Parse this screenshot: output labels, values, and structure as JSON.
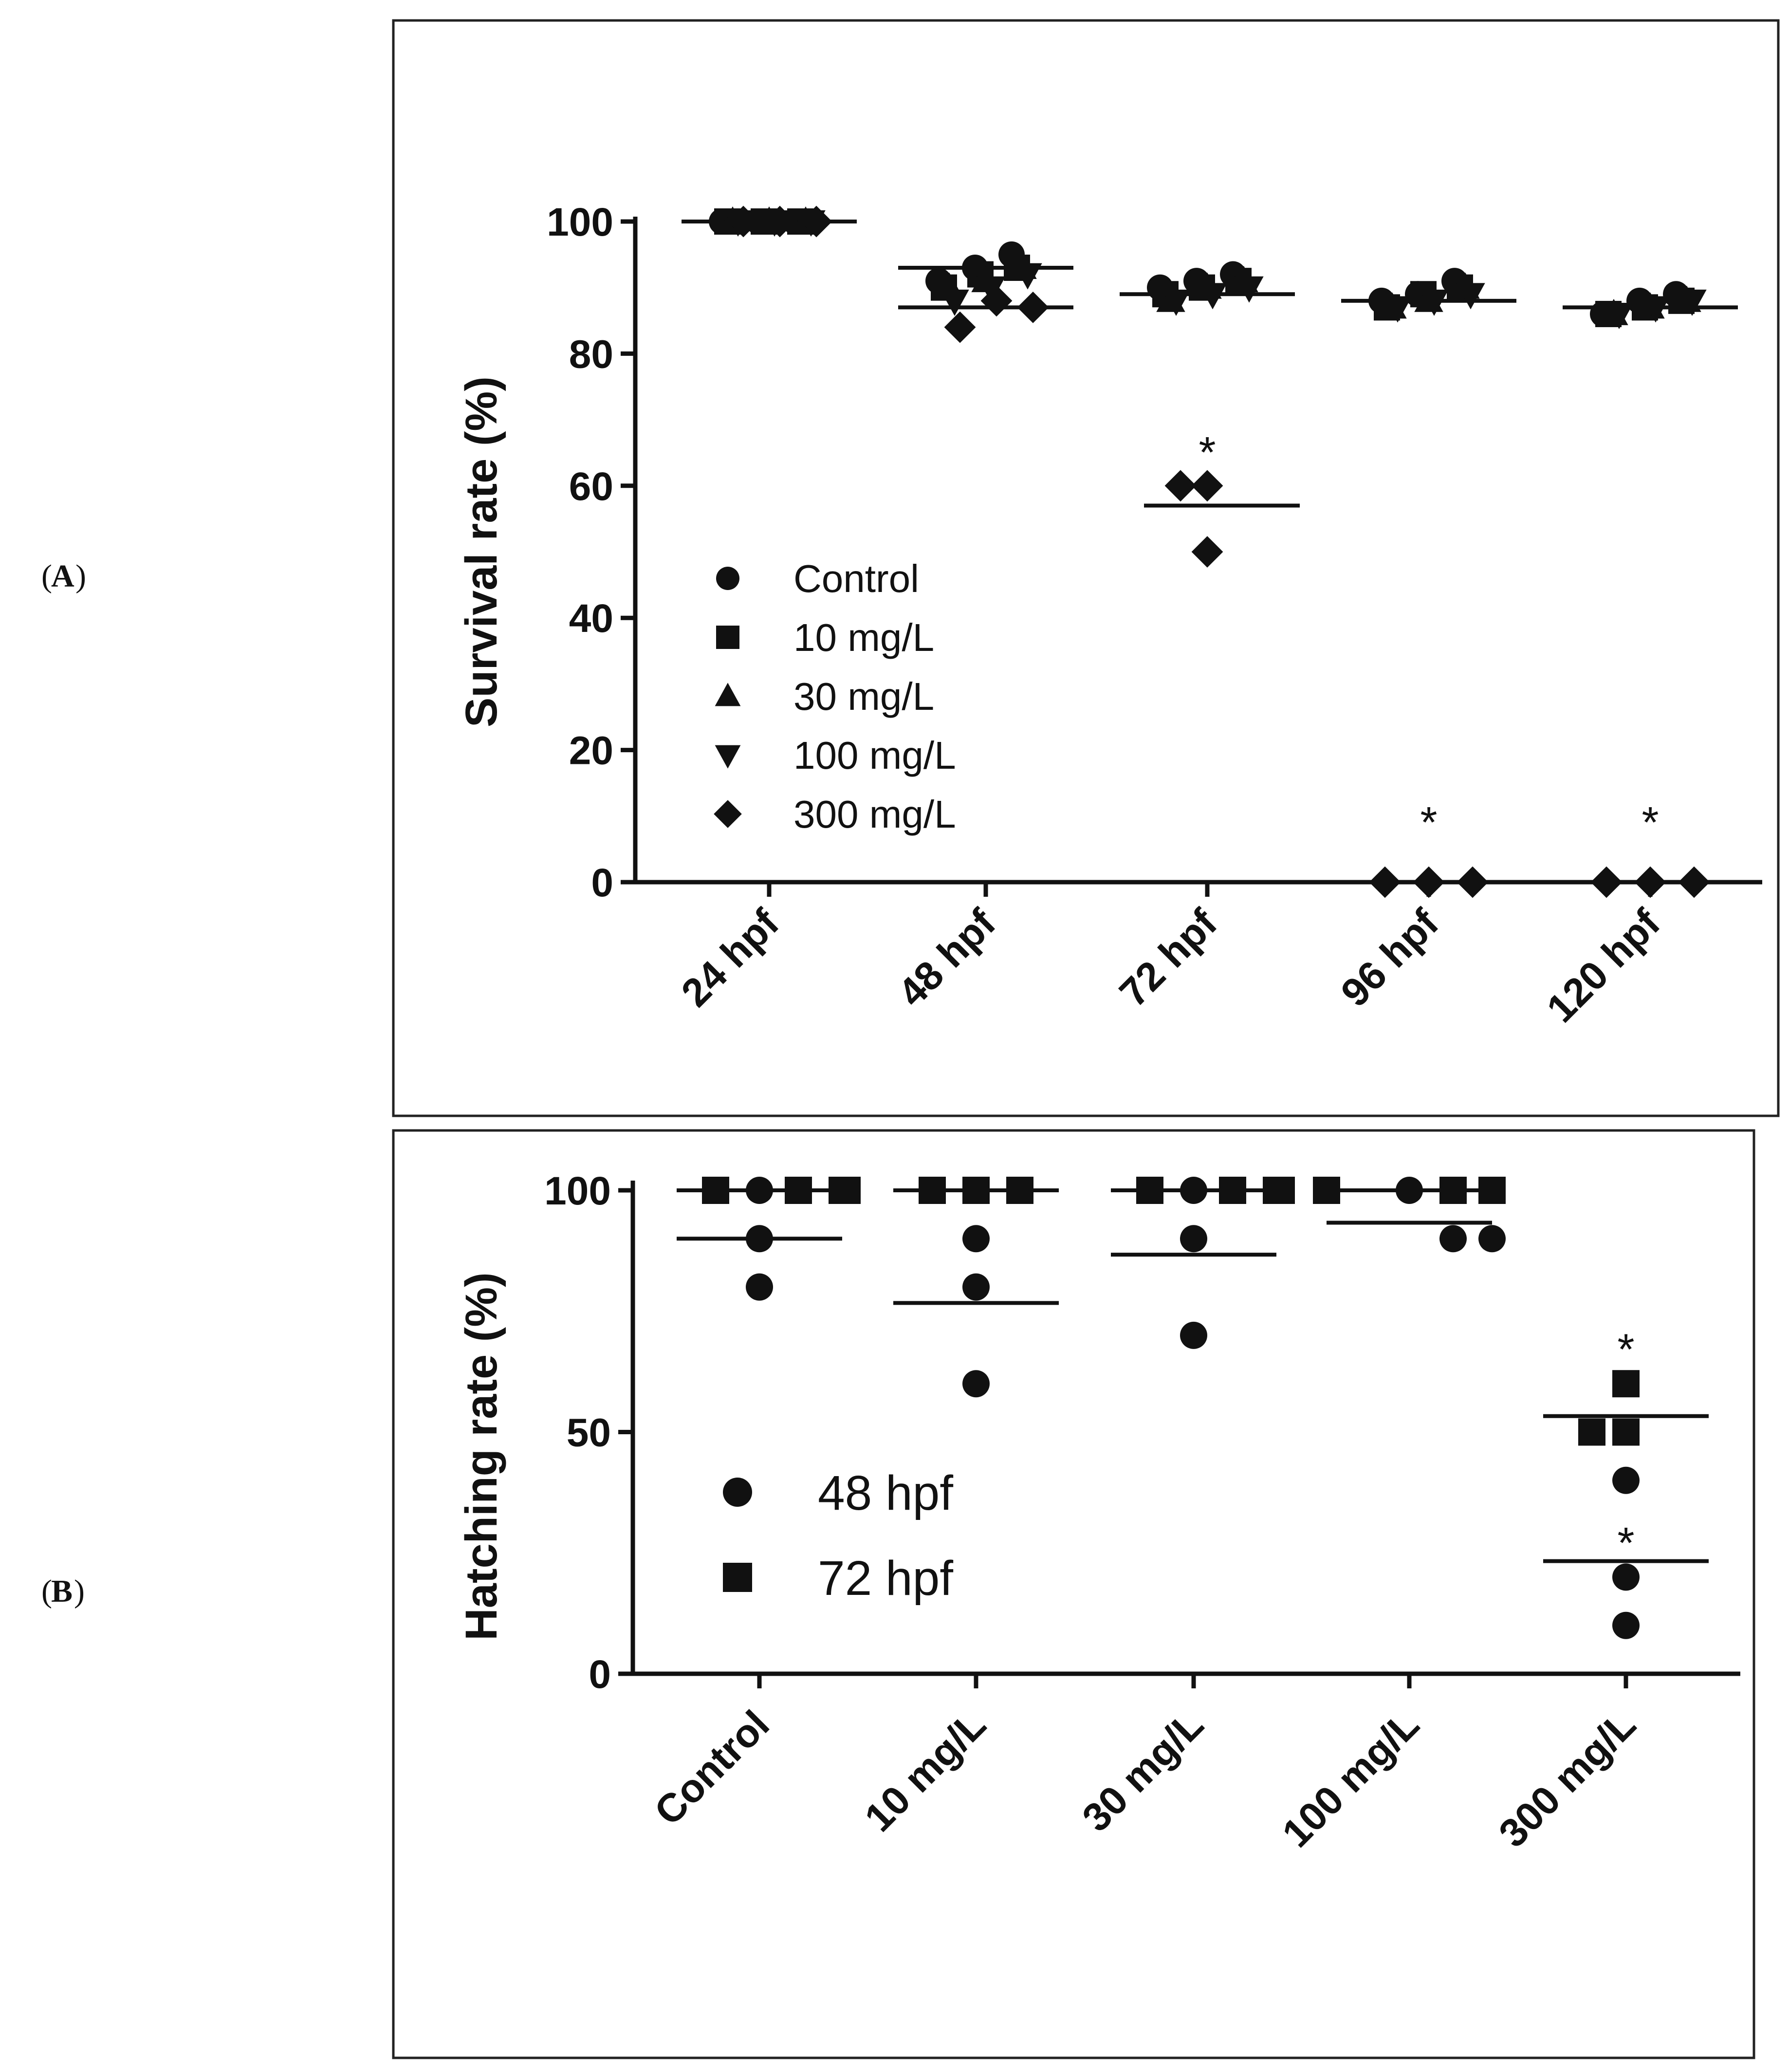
{
  "panel_labels": {
    "a": "A",
    "b": "B"
  },
  "colors": {
    "marker": "#111111",
    "axis": "#111111",
    "frame": "#222222",
    "background": "#ffffff"
  },
  "chart_data": [
    {
      "id": "A",
      "type": "scatter",
      "ylabel": "Survival rate (%)",
      "xlabel": "",
      "categories": [
        "24 hpf",
        "48 hpf",
        "72 hpf",
        "96 hpf",
        "120 hpf"
      ],
      "y_ticks": [
        0,
        20,
        40,
        60,
        80,
        100
      ],
      "ylim": [
        0,
        100
      ],
      "legend": {
        "placement": "lower-left",
        "entries": [
          {
            "name": "Control",
            "marker": "circle"
          },
          {
            "name": "10 mg/L",
            "marker": "square"
          },
          {
            "name": "30 mg/L",
            "marker": "triangle-up"
          },
          {
            "name": "100 mg/L",
            "marker": "triangle-down"
          },
          {
            "name": "300 mg/L",
            "marker": "diamond"
          }
        ]
      },
      "series": [
        {
          "name": "Control",
          "marker": "circle",
          "values": [
            [
              100,
              100,
              100
            ],
            [
              91,
              93,
              95
            ],
            [
              90,
              91,
              92
            ],
            [
              88,
              89,
              91
            ],
            [
              86,
              88,
              89
            ]
          ]
        },
        {
          "name": "10 mg/L",
          "marker": "square",
          "values": [
            [
              100,
              100,
              100
            ],
            [
              90,
              92,
              93
            ],
            [
              89,
              90,
              91
            ],
            [
              87,
              89,
              90
            ],
            [
              86,
              87,
              88
            ]
          ]
        },
        {
          "name": "30 mg/L",
          "marker": "triangle-up",
          "values": [
            [
              100,
              100,
              100
            ],
            [
              90,
              91,
              93
            ],
            [
              88,
              90,
              91
            ],
            [
              87,
              88,
              90
            ],
            [
              86,
              87,
              88
            ]
          ]
        },
        {
          "name": "100 mg/L",
          "marker": "triangle-down",
          "values": [
            [
              100,
              100,
              100
            ],
            [
              88,
              90,
              92
            ],
            [
              88,
              89,
              90
            ],
            [
              87,
              88,
              89
            ],
            [
              86,
              87,
              88
            ]
          ]
        },
        {
          "name": "300 mg/L",
          "marker": "diamond",
          "values": [
            [
              100,
              100,
              100
            ],
            [
              84,
              88,
              87
            ],
            [
              60,
              60,
              50
            ],
            [
              0,
              0,
              0
            ],
            [
              0,
              0,
              0
            ]
          ]
        }
      ],
      "means": [
        {
          "category": "24 hpf",
          "series": "all",
          "value": 100
        },
        {
          "category": "48 hpf",
          "series": "upper",
          "value": 93
        },
        {
          "category": "48 hpf",
          "series": "lower",
          "value": 87
        },
        {
          "category": "72 hpf",
          "series": "all",
          "value": 89
        },
        {
          "category": "72 hpf",
          "series": "300 mg/L",
          "value": 57
        },
        {
          "category": "96 hpf",
          "series": "all",
          "value": 88
        },
        {
          "category": "96 hpf",
          "series": "300 mg/L",
          "value": 0
        },
        {
          "category": "120 hpf",
          "series": "all",
          "value": 87
        },
        {
          "category": "120 hpf",
          "series": "300 mg/L",
          "value": 0
        }
      ],
      "annotations": [
        {
          "text": "*",
          "category": "72 hpf",
          "value": 65
        },
        {
          "text": "*",
          "category": "96 hpf",
          "value": 9
        },
        {
          "text": "*",
          "category": "120 hpf",
          "value": 9
        }
      ]
    },
    {
      "id": "B",
      "type": "scatter",
      "ylabel": "Hatching rate (%)",
      "xlabel": "",
      "categories": [
        "Control",
        "10 mg/L",
        "30 mg/L",
        "100 mg/L",
        "300 mg/L"
      ],
      "y_ticks": [
        0,
        50,
        100
      ],
      "ylim": [
        0,
        100
      ],
      "legend": {
        "placement": "lower-left",
        "entries": [
          {
            "name": "48 hpf",
            "marker": "circle"
          },
          {
            "name": "72 hpf",
            "marker": "square"
          }
        ]
      },
      "series": [
        {
          "name": "48 hpf",
          "marker": "circle",
          "points": [
            [
              "Control",
              100
            ],
            [
              "Control",
              90
            ],
            [
              "Control",
              80
            ],
            [
              "10 mg/L",
              90
            ],
            [
              "10 mg/L",
              80
            ],
            [
              "10 mg/L",
              60
            ],
            [
              "30 mg/L",
              100
            ],
            [
              "30 mg/L",
              90
            ],
            [
              "30 mg/L",
              70
            ],
            [
              "100 mg/L",
              100
            ],
            [
              "100 mg/L",
              90
            ],
            [
              "100 mg/L",
              90
            ],
            [
              "300 mg/L",
              40
            ],
            [
              "300 mg/L",
              20
            ],
            [
              "300 mg/L",
              10
            ]
          ]
        },
        {
          "name": "72 hpf",
          "marker": "square",
          "points": [
            [
              "Control",
              100
            ],
            [
              "Control",
              100
            ],
            [
              "Control",
              100
            ],
            [
              "Control",
              100
            ],
            [
              "10 mg/L",
              100
            ],
            [
              "10 mg/L",
              100
            ],
            [
              "10 mg/L",
              100
            ],
            [
              "30 mg/L",
              100
            ],
            [
              "30 mg/L",
              100
            ],
            [
              "30 mg/L",
              100
            ],
            [
              "30 mg/L",
              100
            ],
            [
              "100 mg/L",
              100
            ],
            [
              "100 mg/L",
              100
            ],
            [
              "100 mg/L",
              100
            ],
            [
              "300 mg/L",
              60
            ],
            [
              "300 mg/L",
              50
            ],
            [
              "300 mg/L",
              50
            ]
          ]
        }
      ],
      "means": [
        {
          "category": "Control",
          "series": "72 hpf",
          "value": 100
        },
        {
          "category": "Control",
          "series": "48 hpf",
          "value": 90
        },
        {
          "category": "10 mg/L",
          "series": "72 hpf",
          "value": 100
        },
        {
          "category": "10 mg/L",
          "series": "48 hpf",
          "value": 76.7
        },
        {
          "category": "30 mg/L",
          "series": "72 hpf",
          "value": 100
        },
        {
          "category": "30 mg/L",
          "series": "48 hpf",
          "value": 86.7
        },
        {
          "category": "100 mg/L",
          "series": "72 hpf",
          "value": 100
        },
        {
          "category": "100 mg/L",
          "series": "48 hpf",
          "value": 93.3
        },
        {
          "category": "300 mg/L",
          "series": "72 hpf",
          "value": 53.3
        },
        {
          "category": "300 mg/L",
          "series": "48 hpf",
          "value": 23.3
        }
      ],
      "annotations": [
        {
          "text": "*",
          "category": "300 mg/L",
          "value": 67
        },
        {
          "text": "*",
          "category": "300 mg/L",
          "value": 27
        }
      ]
    }
  ]
}
